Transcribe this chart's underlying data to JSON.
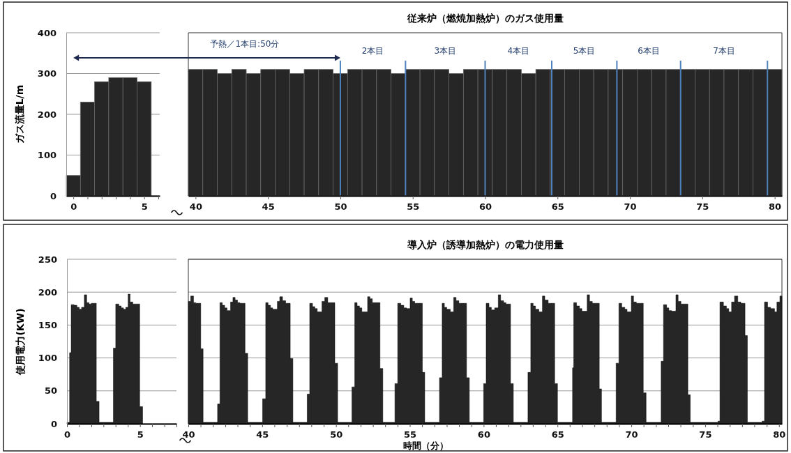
{
  "chart_data": [
    {
      "type": "bar",
      "x": [
        0,
        1,
        2,
        3,
        4,
        5
      ],
      "values": [
        50,
        230,
        280,
        290,
        290,
        280
      ],
      "color": "#262626",
      "xlim": [
        -0.5,
        6.1
      ],
      "xticks": [
        0,
        {
          "value": 1,
          "label": null
        },
        {
          "value": 2,
          "label": null
        },
        {
          "value": 3,
          "label": null
        },
        {
          "value": 4,
          "label": null
        },
        5,
        {
          "value": 6,
          "label": null
        }
      ],
      "ylim": [
        0,
        400
      ],
      "yticks": [
        0,
        100,
        200,
        300,
        400
      ],
      "ylabel": "ガス流量L/m",
      "grid": "y"
    },
    {
      "type": "bar",
      "title": "従来炉（燃焼加熱炉）のガス使用量",
      "x": [
        40,
        41,
        42,
        43,
        44,
        45,
        46,
        47,
        48,
        49,
        50,
        51,
        52,
        53,
        54,
        55,
        56,
        57,
        58,
        59,
        60,
        61,
        62,
        63,
        64,
        65,
        66,
        67,
        68,
        69,
        70,
        71,
        72,
        73,
        74,
        75,
        76,
        77,
        78,
        79,
        80
      ],
      "values": [
        310,
        310,
        300,
        310,
        300,
        310,
        310,
        300,
        310,
        310,
        300,
        310,
        310,
        310,
        300,
        310,
        310,
        310,
        300,
        310,
        310,
        310,
        310,
        300,
        310,
        310,
        310,
        310,
        310,
        310,
        310,
        310,
        310,
        310,
        310,
        310,
        310,
        310,
        310,
        310,
        310
      ],
      "color": "#262626",
      "xlim": [
        39.5,
        80.5
      ],
      "xticks": [
        40,
        45,
        50,
        55,
        60,
        65,
        70,
        75,
        80
      ],
      "ylim": [
        0,
        400
      ],
      "tick_labels": "x",
      "ref_lines": [
        {
          "axis": "x",
          "value": 50,
          "color": "#4f81bd"
        },
        {
          "axis": "x",
          "value": 54.5,
          "color": "#4f81bd"
        },
        {
          "axis": "x",
          "value": 60,
          "color": "#4f81bd"
        },
        {
          "axis": "x",
          "value": 64.6,
          "color": "#4f81bd"
        },
        {
          "axis": "x",
          "value": 69.1,
          "color": "#4f81bd"
        },
        {
          "axis": "x",
          "value": 73.5,
          "color": "#4f81bd"
        },
        {
          "axis": "x",
          "value": 79.5,
          "color": "#4f81bd"
        }
      ],
      "annotations": [
        "予熱／1本目:50分",
        "2本目",
        "3本目",
        "4本目",
        "5本目",
        "6本目",
        "7本目"
      ]
    },
    {
      "type": "area",
      "x": [
        0,
        0.18,
        0.29,
        0.49,
        0.68,
        0.84,
        1.0,
        1.19,
        1.35,
        1.51,
        1.67,
        2.01,
        2.2,
        3.18,
        3.34,
        3.55,
        3.71,
        3.87,
        4.03,
        4.19,
        4.32,
        4.51,
        4.67,
        4.98,
        5.18
      ],
      "values": [
        2,
        108,
        181,
        180,
        177,
        174,
        177,
        196,
        184,
        182,
        183,
        34,
        2,
        115,
        182,
        179,
        176,
        174,
        177,
        197,
        185,
        182,
        182,
        26,
        2
      ],
      "color": "#262626",
      "xlim": [
        0,
        7.5
      ],
      "xticks": [
        0,
        {
          "value": 0.83,
          "label": null
        },
        {
          "value": 1.67,
          "label": null
        },
        {
          "value": 2.5,
          "label": null
        },
        {
          "value": 3.33,
          "label": null
        },
        {
          "value": 4.17,
          "label": null
        },
        5,
        {
          "value": 5.83,
          "label": null
        },
        {
          "value": 6.67,
          "label": null
        },
        {
          "value": 7.5,
          "label": null
        }
      ],
      "ylim": [
        0,
        250
      ],
      "yticks": [
        0,
        50,
        100,
        150,
        200,
        250
      ],
      "ylabel": "使用電力(KW)",
      "grid": "y"
    },
    {
      "type": "area",
      "title": "導入炉（誘導加熱炉）の電力使用量",
      "xlabel": "時間（分）",
      "x": [
        40.0,
        40.16,
        40.35,
        40.5,
        40.84,
        41.0,
        41.98,
        42.14,
        42.3,
        42.46,
        42.62,
        42.86,
        43.02,
        43.17,
        43.33,
        43.49,
        43.84,
        44.02,
        45.03,
        45.24,
        45.4,
        45.56,
        45.71,
        46.03,
        46.19,
        46.38,
        46.59,
        46.9,
        47.08,
        48.05,
        48.22,
        48.41,
        48.57,
        48.73,
        49.05,
        49.24,
        49.44,
        49.92,
        50.11,
        51.08,
        51.27,
        51.43,
        51.59,
        51.75,
        52.14,
        52.3,
        52.46,
        52.98,
        53.17,
        53.99,
        54.18,
        54.39,
        54.59,
        54.78,
        55.02,
        55.17,
        55.33,
        55.85,
        56.01,
        57.01,
        57.19,
        57.34,
        57.5,
        57.74,
        57.97,
        58.13,
        58.32,
        58.84,
        59.03,
        60.0,
        60.17,
        60.36,
        60.52,
        60.75,
        60.99,
        61.15,
        61.35,
        61.51,
        61.82,
        62.01,
        63.0,
        63.19,
        63.35,
        63.51,
        63.74,
        63.98,
        64.14,
        64.37,
        64.81,
        65.0,
        66.02,
        66.1,
        66.29,
        66.49,
        66.65,
        67.01,
        67.17,
        67.36,
        67.83,
        67.98,
        68.97,
        69.16,
        69.35,
        69.56,
        69.71,
        70.0,
        70.15,
        70.34,
        70.81,
        71.0,
        72.02,
        72.18,
        72.39,
        72.54,
        72.73,
        73.02,
        73.17,
        73.36,
        73.83,
        73.99,
        75.87,
        76.0,
        76.24,
        76.44,
        76.6,
        76.79,
        76.99,
        77.21,
        77.42,
        77.7,
        77.86,
        78.85,
        79.02,
        79.23,
        79.43,
        79.7,
        79.86,
        80.06,
        80.2
      ],
      "values": [
        186,
        194,
        184,
        183,
        114,
        2,
        30,
        184,
        180,
        176,
        172,
        185,
        192,
        188,
        184,
        183,
        107,
        2,
        38,
        184,
        180,
        176,
        174,
        186,
        193,
        187,
        183,
        99,
        2,
        45,
        183,
        178,
        175,
        170,
        186,
        192,
        184,
        92,
        2,
        56,
        184,
        179,
        176,
        170,
        193,
        190,
        184,
        84,
        2,
        61,
        183,
        180,
        176,
        175,
        191,
        186,
        183,
        78,
        2,
        70,
        183,
        177,
        174,
        170,
        192,
        187,
        183,
        70,
        2,
        61,
        183,
        177,
        173,
        176,
        196,
        187,
        184,
        182,
        61,
        2,
        78,
        183,
        179,
        174,
        170,
        194,
        188,
        183,
        61,
        2,
        85,
        184,
        179,
        175,
        171,
        196,
        186,
        183,
        53,
        2,
        92,
        183,
        177,
        174,
        170,
        194,
        185,
        183,
        47,
        2,
        95,
        181,
        176,
        172,
        171,
        196,
        186,
        182,
        44,
        2,
        4,
        185,
        179,
        175,
        170,
        185,
        194,
        185,
        183,
        134,
        2,
        4,
        185,
        177,
        175,
        170,
        185,
        194,
        194
      ],
      "color": "#262626",
      "xlim": [
        40,
        80.2
      ],
      "xticks": [
        40,
        {
          "value": 40.83,
          "label": null
        },
        {
          "value": 41.67,
          "label": null
        },
        {
          "value": 42.5,
          "label": null
        },
        {
          "value": 43.33,
          "label": null
        },
        {
          "value": 44.17,
          "label": null
        },
        45,
        {
          "value": 45.83,
          "label": null
        },
        {
          "value": 46.67,
          "label": null
        },
        {
          "value": 47.5,
          "label": null
        },
        {
          "value": 48.33,
          "label": null
        },
        {
          "value": 49.17,
          "label": null
        },
        50,
        {
          "value": 50.83,
          "label": null
        },
        {
          "value": 51.67,
          "label": null
        },
        {
          "value": 52.5,
          "label": null
        },
        {
          "value": 53.33,
          "label": null
        },
        {
          "value": 54.17,
          "label": null
        },
        55,
        {
          "value": 55.83,
          "label": null
        },
        {
          "value": 56.67,
          "label": null
        },
        {
          "value": 57.5,
          "label": null
        },
        {
          "value": 58.33,
          "label": null
        },
        {
          "value": 59.17,
          "label": null
        },
        60,
        {
          "value": 60.83,
          "label": null
        },
        {
          "value": 61.67,
          "label": null
        },
        {
          "value": 62.5,
          "label": null
        },
        {
          "value": 63.33,
          "label": null
        },
        {
          "value": 64.17,
          "label": null
        },
        65,
        {
          "value": 65.83,
          "label": null
        },
        {
          "value": 66.67,
          "label": null
        },
        {
          "value": 67.5,
          "label": null
        },
        {
          "value": 68.33,
          "label": null
        },
        {
          "value": 69.17,
          "label": null
        },
        70,
        {
          "value": 70.83,
          "label": null
        },
        {
          "value": 71.67,
          "label": null
        },
        {
          "value": 72.5,
          "label": null
        },
        {
          "value": 73.33,
          "label": null
        },
        {
          "value": 74.17,
          "label": null
        },
        75,
        {
          "value": 75.83,
          "label": null
        },
        {
          "value": 76.67,
          "label": null
        },
        {
          "value": 77.5,
          "label": null
        },
        {
          "value": 78.33,
          "label": null
        },
        {
          "value": 79.17,
          "label": null
        },
        80
      ],
      "ylim": [
        0,
        250
      ],
      "yticks": [
        0,
        50,
        100,
        150,
        200,
        250
      ],
      "tick_labels": "x",
      "grid": "y"
    }
  ]
}
